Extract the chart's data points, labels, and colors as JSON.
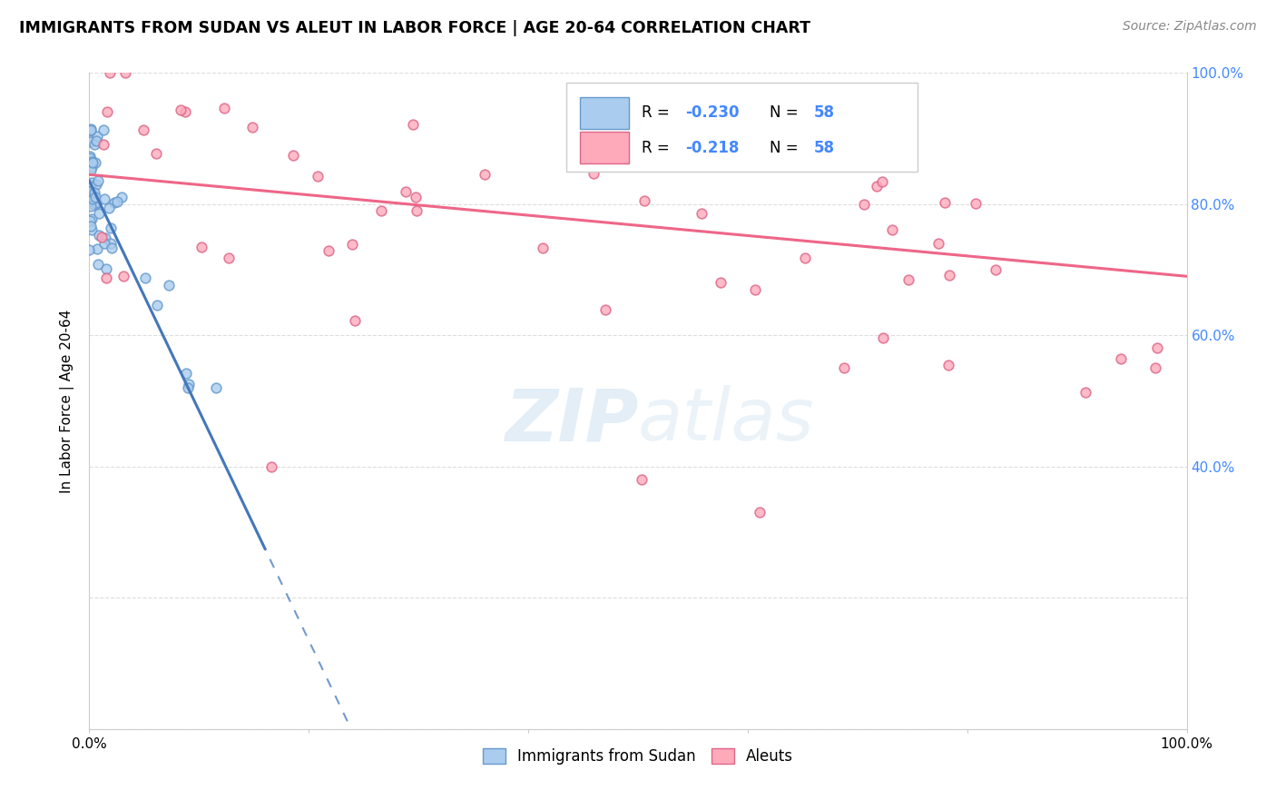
{
  "title": "IMMIGRANTS FROM SUDAN VS ALEUT IN LABOR FORCE | AGE 20-64 CORRELATION CHART",
  "source": "Source: ZipAtlas.com",
  "ylabel": "In Labor Force | Age 20-64",
  "legend_label1": "Immigrants from Sudan",
  "legend_label2": "Aleuts",
  "R1": -0.23,
  "N1": 58,
  "R2": -0.218,
  "N2": 58,
  "color_blue_fill": "#aaccee",
  "color_blue_edge": "#6699cc",
  "color_blue_line": "#4477bb",
  "color_pink_fill": "#ffaabb",
  "color_pink_edge": "#dd6688",
  "color_pink_line": "#ee6688",
  "color_right_axis": "#4488ff",
  "watermark_color": "#c8dff0",
  "grid_color": "#dddddd",
  "xmin": 0.0,
  "xmax": 1.0,
  "ymin": 0.0,
  "ymax": 1.0,
  "sudan_intercept": 0.835,
  "sudan_slope": -3.5,
  "aleut_intercept": 0.845,
  "aleut_slope": -0.155
}
